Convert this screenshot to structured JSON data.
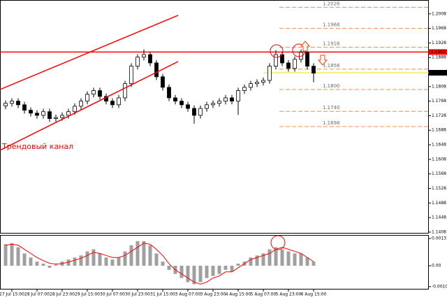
{
  "chart_data": [
    {
      "type": "candlestick",
      "categories": [
        null,
        "27 Jul 15:00",
        null,
        null,
        null,
        "28 Jul 07:00",
        null,
        null,
        null,
        "28 Jul 23:00",
        null,
        null,
        null,
        "29 Jul 15:00",
        null,
        null,
        null,
        "30 Jul 07:00",
        null,
        null,
        null,
        "30 Jul 23:00",
        null,
        null,
        null,
        "31 Jul 15:00",
        null,
        null,
        null,
        "3 Aug 07:00",
        null,
        null,
        null,
        "3 Aug 23:00",
        null,
        null,
        null,
        "4 Aug 15:00",
        null,
        null,
        null,
        "5 Aug 07:00",
        null,
        null,
        null,
        "5 Aug 23:00",
        null,
        null,
        null,
        "6 Aug 15:00"
      ],
      "open": [
        1.1755,
        1.1762,
        1.1768,
        1.1758,
        1.1743,
        1.1735,
        1.1729,
        1.1739,
        1.172,
        1.1723,
        1.1729,
        1.1739,
        1.1754,
        1.1768,
        1.1787,
        1.1797,
        1.1781,
        1.1768,
        1.1758,
        1.1777,
        1.1816,
        1.1864,
        1.1889,
        1.1896,
        1.1873,
        1.1835,
        1.1806,
        1.1777,
        1.1768,
        1.1758,
        1.1748,
        1.1729,
        1.1748,
        1.1758,
        1.1762,
        1.1768,
        1.1777,
        1.1768,
        1.1797,
        1.1806,
        1.1816,
        1.182,
        1.1825,
        1.1864,
        1.1896,
        1.1873,
        1.1858,
        1.1883,
        1.1902,
        1.1864
      ],
      "high": [
        1.177,
        1.1776,
        1.1776,
        1.1766,
        1.1751,
        1.1743,
        1.1747,
        1.1747,
        1.1731,
        1.1737,
        1.1747,
        1.1762,
        1.1776,
        1.1795,
        1.1805,
        1.1805,
        1.1789,
        1.1776,
        1.1785,
        1.1824,
        1.1872,
        1.1897,
        1.191,
        1.1904,
        1.1881,
        1.1843,
        1.1814,
        1.1785,
        1.1776,
        1.1766,
        1.1756,
        1.1756,
        1.1766,
        1.177,
        1.1776,
        1.1785,
        1.1785,
        1.1805,
        1.1814,
        1.1824,
        1.1828,
        1.1833,
        1.1872,
        1.1908,
        1.1904,
        1.1881,
        1.1891,
        1.191,
        1.191,
        1.1872
      ],
      "low": [
        1.1746,
        1.1753,
        1.1749,
        1.1734,
        1.1726,
        1.172,
        1.172,
        1.1711,
        1.1711,
        1.1714,
        1.172,
        1.173,
        1.1745,
        1.1759,
        1.1778,
        1.1772,
        1.1759,
        1.1749,
        1.1749,
        1.1768,
        1.1807,
        1.1855,
        1.188,
        1.1864,
        1.1826,
        1.1797,
        1.1768,
        1.1759,
        1.1749,
        1.1739,
        1.1706,
        1.172,
        1.1739,
        1.1749,
        1.1753,
        1.1759,
        1.1759,
        1.173,
        1.1788,
        1.1797,
        1.1807,
        1.1811,
        1.1816,
        1.1855,
        1.1864,
        1.1849,
        1.1849,
        1.1874,
        1.1855,
        1.182
      ],
      "close": [
        1.1762,
        1.1768,
        1.1758,
        1.1743,
        1.1735,
        1.1729,
        1.1739,
        1.172,
        1.1723,
        1.1729,
        1.1739,
        1.1754,
        1.1768,
        1.1787,
        1.1797,
        1.1781,
        1.1768,
        1.1758,
        1.1777,
        1.1816,
        1.1864,
        1.1889,
        1.1896,
        1.1873,
        1.1835,
        1.1806,
        1.1777,
        1.1768,
        1.1758,
        1.1748,
        1.1729,
        1.1748,
        1.1758,
        1.1762,
        1.1768,
        1.1777,
        1.1768,
        1.1797,
        1.1806,
        1.1816,
        1.182,
        1.1825,
        1.1864,
        1.1896,
        1.1873,
        1.1858,
        1.1883,
        1.1902,
        1.1864,
        1.1845
      ],
      "ylim": [
        1.1404,
        1.2046
      ],
      "yticks": [
        1.2008,
        1.1968,
        1.1928,
        1.1888,
        1.1808,
        1.1768,
        1.1728,
        1.1688,
        1.1648,
        1.1608,
        1.1568,
        1.1528,
        1.1488,
        1.1448,
        1.1408
      ],
      "levels": [
        1.2026,
        1.1968,
        1.1916,
        1.1856,
        {
          "value": 1.18,
          "label": "1.1800"
        },
        {
          "value": 1.174,
          "label": "1.1740"
        },
        1.1698
      ],
      "level_color": "#f08c50",
      "hline": {
        "value": 1.1903,
        "color": "#ff0000"
      },
      "current_price": 1.1846,
      "annotation": "Трендовый канал"
    },
    {
      "type": "macd",
      "histogram": [
        0.00105,
        0.0011,
        0.0009,
        0.0006,
        0.0004,
        0.0002,
        0.0001,
        -0.0001,
        5e-05,
        0.0002,
        0.0003,
        0.0004,
        0.0005,
        0.0007,
        0.0008,
        0.0006,
        0.0004,
        0.0003,
        0.0004,
        0.0007,
        0.001,
        0.0012,
        0.0012,
        0.001,
        0.0006,
        0.0002,
        -0.0002,
        -0.0004,
        -0.0006,
        -0.0008,
        -0.0009,
        -0.0008,
        -0.0006,
        -0.0005,
        -0.0004,
        -0.0002,
        -0.0003,
        0.0001,
        0.0002,
        0.0004,
        0.0005,
        0.0006,
        0.0008,
        0.0009,
        0.0008,
        0.0007,
        0.0006,
        0.0006,
        0.0004,
        0.0002
      ],
      "signal": [
        0.001,
        0.00105,
        0.001,
        0.0008,
        0.0006,
        0.0004,
        0.00025,
        0.00012,
        8e-05,
        0.0001,
        0.00018,
        0.00027,
        0.00036,
        0.0005,
        0.00065,
        0.0006,
        0.0005,
        0.0004,
        0.0004,
        0.0005,
        0.0007,
        0.0009,
        0.0011,
        0.00105,
        0.0008,
        0.0005,
        0.0001,
        -0.0002,
        -0.0004,
        -0.0006,
        -0.0008,
        -0.0009,
        -0.0008,
        -0.0006,
        -0.0005,
        -0.0003,
        -0.0003,
        -0.0001,
        0.0001,
        0.0003,
        0.0004,
        0.0005,
        0.0006,
        0.0008,
        0.0009,
        0.0008,
        0.0007,
        0.0006,
        0.0004,
        0.0002
      ],
      "histogram_color": "#a0a0a0",
      "signal_color": "#ff0000",
      "ylim": [
        -0.00116,
        0.0015
      ],
      "yticks": [
        0.00133,
        {
          "value": 0,
          "label": "0.00"
        },
        -0.00102
      ]
    }
  ]
}
